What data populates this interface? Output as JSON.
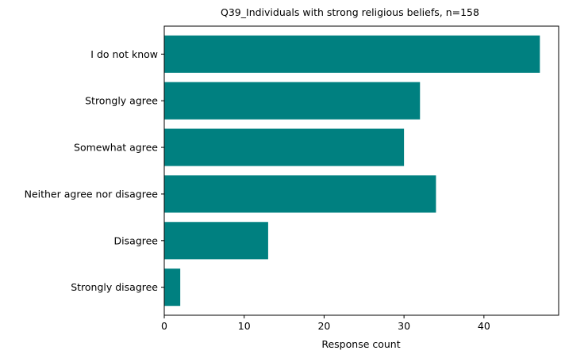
{
  "chart_data": {
    "type": "bar",
    "orientation": "horizontal",
    "title": "Q39_Individuals with strong religious beliefs, n=158",
    "xlabel": "Response count",
    "ylabel": "",
    "categories": [
      "Strongly disagree",
      "Disagree",
      "Neither agree nor disagree",
      "Somewhat agree",
      "Strongly agree",
      "I do not know"
    ],
    "values": [
      2,
      13,
      34,
      30,
      32,
      47
    ],
    "xlim": [
      0,
      49.35
    ],
    "xticks": [
      0,
      10,
      20,
      30,
      40
    ],
    "grid": false,
    "bar_color": "#008080"
  }
}
